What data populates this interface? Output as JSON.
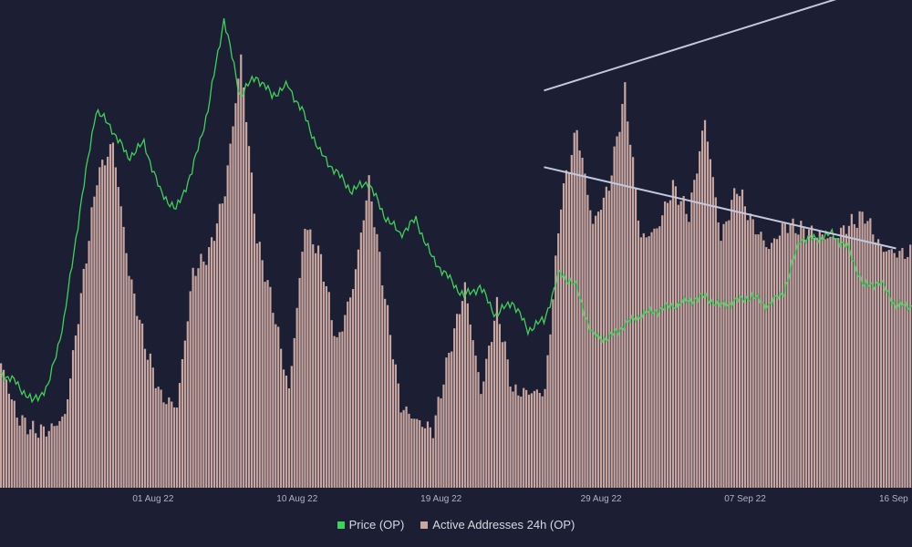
{
  "colors": {
    "background": "#1c1f33",
    "price": "#3fd15a",
    "addresses": "#c9a6a0",
    "trendline": "#c3c8dd",
    "axis_text": "#aeb3c8"
  },
  "chart_data": {
    "type": "bar",
    "title": "",
    "xlabel": "",
    "ylabel": "",
    "x_axis": {
      "start": "2022-07-23",
      "end": "2022-09-17",
      "tick_labels": [
        "01 Aug 22",
        "10 Aug 22",
        "19 Aug 22",
        "29 Aug 22",
        "07 Sep 22",
        "16 Sep"
      ]
    },
    "grid": false,
    "legend_position": "bottom-center",
    "series": [
      {
        "name": "Active Addresses 24h (OP)",
        "type": "bar",
        "color": "#c9a6a0",
        "points": [
          [
            "2022-07-23",
            0.26
          ],
          [
            "2022-07-24",
            0.15
          ],
          [
            "2022-07-25",
            0.12
          ],
          [
            "2022-07-26",
            0.12
          ],
          [
            "2022-07-27",
            0.15
          ],
          [
            "2022-07-28",
            0.4
          ],
          [
            "2022-07-29",
            0.65
          ],
          [
            "2022-07-30",
            0.72
          ],
          [
            "2022-07-31",
            0.45
          ],
          [
            "2022-08-01",
            0.3
          ],
          [
            "2022-08-02",
            0.19
          ],
          [
            "2022-08-03",
            0.17
          ],
          [
            "2022-08-04",
            0.45
          ],
          [
            "2022-08-05",
            0.49
          ],
          [
            "2022-08-06",
            0.62
          ],
          [
            "2022-08-07",
            0.9
          ],
          [
            "2022-08-08",
            0.52
          ],
          [
            "2022-08-09",
            0.38
          ],
          [
            "2022-08-10",
            0.2
          ],
          [
            "2022-08-11",
            0.55
          ],
          [
            "2022-08-12",
            0.48
          ],
          [
            "2022-08-13",
            0.3
          ],
          [
            "2022-08-14",
            0.42
          ],
          [
            "2022-08-15",
            0.64
          ],
          [
            "2022-08-16",
            0.4
          ],
          [
            "2022-08-17",
            0.17
          ],
          [
            "2022-08-18",
            0.14
          ],
          [
            "2022-08-19",
            0.12
          ],
          [
            "2022-08-20",
            0.28
          ],
          [
            "2022-08-21",
            0.42
          ],
          [
            "2022-08-22",
            0.2
          ],
          [
            "2022-08-23",
            0.38
          ],
          [
            "2022-08-24",
            0.2
          ],
          [
            "2022-08-25",
            0.2
          ],
          [
            "2022-08-26",
            0.2
          ],
          [
            "2022-08-27",
            0.6
          ],
          [
            "2022-08-28",
            0.75
          ],
          [
            "2022-08-29",
            0.55
          ],
          [
            "2022-08-30",
            0.63
          ],
          [
            "2022-08-31",
            0.83
          ],
          [
            "2022-09-01",
            0.52
          ],
          [
            "2022-09-02",
            0.54
          ],
          [
            "2022-09-03",
            0.63
          ],
          [
            "2022-09-04",
            0.57
          ],
          [
            "2022-09-05",
            0.77
          ],
          [
            "2022-09-06",
            0.52
          ],
          [
            "2022-09-07",
            0.63
          ],
          [
            "2022-09-08",
            0.55
          ],
          [
            "2022-09-09",
            0.5
          ],
          [
            "2022-09-10",
            0.55
          ],
          [
            "2022-09-11",
            0.54
          ],
          [
            "2022-09-12",
            0.53
          ],
          [
            "2022-09-13",
            0.52
          ],
          [
            "2022-09-14",
            0.55
          ],
          [
            "2022-09-15",
            0.57
          ],
          [
            "2022-09-16",
            0.5
          ],
          [
            "2022-09-17",
            0.49
          ]
        ]
      },
      {
        "name": "Price (OP)",
        "type": "line",
        "color": "#3fd15a",
        "points": [
          [
            "2022-07-23",
            0.24
          ],
          [
            "2022-07-24",
            0.22
          ],
          [
            "2022-07-25",
            0.18
          ],
          [
            "2022-07-26",
            0.21
          ],
          [
            "2022-07-27",
            0.35
          ],
          [
            "2022-07-28",
            0.58
          ],
          [
            "2022-07-29",
            0.79
          ],
          [
            "2022-07-30",
            0.75
          ],
          [
            "2022-07-31",
            0.69
          ],
          [
            "2022-08-01",
            0.72
          ],
          [
            "2022-08-02",
            0.62
          ],
          [
            "2022-08-03",
            0.58
          ],
          [
            "2022-08-04",
            0.66
          ],
          [
            "2022-08-05",
            0.79
          ],
          [
            "2022-08-06",
            0.98
          ],
          [
            "2022-08-07",
            0.82
          ],
          [
            "2022-08-08",
            0.86
          ],
          [
            "2022-08-09",
            0.82
          ],
          [
            "2022-08-10",
            0.84
          ],
          [
            "2022-08-11",
            0.78
          ],
          [
            "2022-08-12",
            0.7
          ],
          [
            "2022-08-13",
            0.66
          ],
          [
            "2022-08-14",
            0.62
          ],
          [
            "2022-08-15",
            0.64
          ],
          [
            "2022-08-16",
            0.57
          ],
          [
            "2022-08-17",
            0.53
          ],
          [
            "2022-08-18",
            0.56
          ],
          [
            "2022-08-19",
            0.48
          ],
          [
            "2022-08-20",
            0.44
          ],
          [
            "2022-08-21",
            0.4
          ],
          [
            "2022-08-22",
            0.42
          ],
          [
            "2022-08-23",
            0.36
          ],
          [
            "2022-08-24",
            0.39
          ],
          [
            "2022-08-25",
            0.33
          ],
          [
            "2022-08-26",
            0.35
          ],
          [
            "2022-08-27",
            0.45
          ],
          [
            "2022-08-28",
            0.42
          ],
          [
            "2022-08-29",
            0.32
          ],
          [
            "2022-08-30",
            0.31
          ],
          [
            "2022-08-31",
            0.34
          ],
          [
            "2022-09-01",
            0.36
          ],
          [
            "2022-09-02",
            0.37
          ],
          [
            "2022-09-03",
            0.38
          ],
          [
            "2022-09-04",
            0.39
          ],
          [
            "2022-09-05",
            0.4
          ],
          [
            "2022-09-06",
            0.38
          ],
          [
            "2022-09-07",
            0.39
          ],
          [
            "2022-09-08",
            0.4
          ],
          [
            "2022-09-09",
            0.38
          ],
          [
            "2022-09-10",
            0.41
          ],
          [
            "2022-09-11",
            0.52
          ],
          [
            "2022-09-12",
            0.52
          ],
          [
            "2022-09-13",
            0.53
          ],
          [
            "2022-09-14",
            0.5
          ],
          [
            "2022-09-15",
            0.42
          ],
          [
            "2022-09-16",
            0.43
          ],
          [
            "2022-09-17",
            0.38
          ]
        ]
      }
    ],
    "annotations": [
      {
        "type": "trendline",
        "color": "#c3c8dd",
        "from": [
          "2022-08-26",
          0.83
        ],
        "to": [
          "2022-09-17",
          1.06
        ]
      },
      {
        "type": "trendline",
        "color": "#c3c8dd",
        "from": [
          "2022-08-26",
          0.67
        ],
        "to": [
          "2022-09-17",
          0.5
        ]
      }
    ],
    "legend": [
      {
        "label": "Price (OP)",
        "color": "#3fd15a"
      },
      {
        "label": "Active Addresses 24h (OP)",
        "color": "#c9a6a0"
      }
    ]
  }
}
